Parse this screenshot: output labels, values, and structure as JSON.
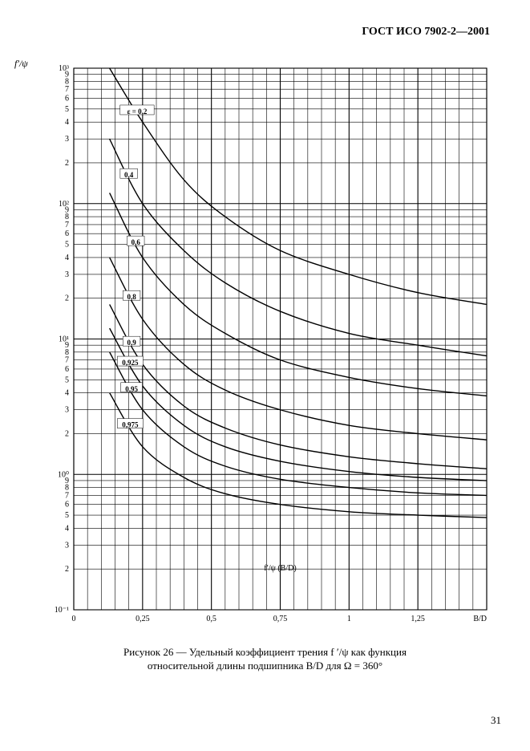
{
  "header": "ГОСТ ИСО 7902-2—2001",
  "page_number": "31",
  "caption_line1": "Рисунок 26 — Удельный коэффициент трения f ′/ψ как функция",
  "caption_line2": "относительной длины подшипника B/D для Ω = 360°",
  "y_axis_symbol": "f′/ψ",
  "x_axis_symbol": "B/D",
  "inner_axis_label": "f′/ψ (B/D)",
  "chart": {
    "type": "line",
    "background_color": "#ffffff",
    "grid_color": "#000000",
    "line_color": "#000000",
    "line_width": 1.4,
    "grid_minor_width": 0.6,
    "grid_major_width": 1.1,
    "font_size_ticks": 10,
    "font_size_series": 9,
    "x": {
      "lim": [
        0,
        1.5
      ],
      "major_step": 0.25,
      "minor_step": 0.05,
      "tick_labels": [
        "0",
        "0,25",
        "0,5",
        "0,75",
        "1",
        "1,25"
      ]
    },
    "y": {
      "type": "log",
      "min_exp": -1,
      "max_exp": 3,
      "decade_labels_sup": [
        "10⁻¹",
        "10⁰",
        "10¹",
        "10²",
        "10³"
      ],
      "minor_ticks_text": [
        "2",
        "3",
        "4",
        "5",
        "6",
        "7",
        "8",
        "9"
      ]
    },
    "series": [
      {
        "label": "ε = 0,2",
        "label_x": 0.23,
        "points": [
          [
            0.13,
            1000
          ],
          [
            0.25,
            400
          ],
          [
            0.4,
            150
          ],
          [
            0.55,
            80
          ],
          [
            0.75,
            45
          ],
          [
            1.0,
            30
          ],
          [
            1.25,
            22
          ],
          [
            1.5,
            18
          ]
        ]
      },
      {
        "label": "0,4",
        "label_x": 0.2,
        "points": [
          [
            0.13,
            300
          ],
          [
            0.25,
            100
          ],
          [
            0.4,
            45
          ],
          [
            0.55,
            26
          ],
          [
            0.75,
            16
          ],
          [
            1.0,
            11
          ],
          [
            1.25,
            9
          ],
          [
            1.5,
            7.5
          ]
        ]
      },
      {
        "label": "0,6",
        "label_x": 0.225,
        "points": [
          [
            0.13,
            120
          ],
          [
            0.25,
            40
          ],
          [
            0.4,
            18
          ],
          [
            0.55,
            11
          ],
          [
            0.75,
            7
          ],
          [
            1.0,
            5.2
          ],
          [
            1.25,
            4.3
          ],
          [
            1.5,
            3.8
          ]
        ]
      },
      {
        "label": "0,8",
        "label_x": 0.21,
        "points": [
          [
            0.13,
            40
          ],
          [
            0.25,
            14
          ],
          [
            0.4,
            6.5
          ],
          [
            0.55,
            4.2
          ],
          [
            0.75,
            3.0
          ],
          [
            1.0,
            2.3
          ],
          [
            1.25,
            2.0
          ],
          [
            1.5,
            1.8
          ]
        ]
      },
      {
        "label": "0,9",
        "label_x": 0.21,
        "points": [
          [
            0.13,
            18
          ],
          [
            0.25,
            6.5
          ],
          [
            0.4,
            3.2
          ],
          [
            0.55,
            2.2
          ],
          [
            0.75,
            1.65
          ],
          [
            1.0,
            1.35
          ],
          [
            1.25,
            1.2
          ],
          [
            1.5,
            1.1
          ]
        ]
      },
      {
        "label": "0,925",
        "label_x": 0.205,
        "points": [
          [
            0.13,
            12
          ],
          [
            0.25,
            4.5
          ],
          [
            0.4,
            2.3
          ],
          [
            0.55,
            1.6
          ],
          [
            0.75,
            1.25
          ],
          [
            1.0,
            1.05
          ],
          [
            1.25,
            0.95
          ],
          [
            1.5,
            0.9
          ]
        ]
      },
      {
        "label": "0,95",
        "label_x": 0.21,
        "points": [
          [
            0.13,
            8
          ],
          [
            0.25,
            3.0
          ],
          [
            0.4,
            1.6
          ],
          [
            0.55,
            1.15
          ],
          [
            0.75,
            0.92
          ],
          [
            1.0,
            0.8
          ],
          [
            1.25,
            0.73
          ],
          [
            1.5,
            0.7
          ]
        ]
      },
      {
        "label": "0,975",
        "label_x": 0.205,
        "points": [
          [
            0.13,
            4
          ],
          [
            0.25,
            1.6
          ],
          [
            0.4,
            0.95
          ],
          [
            0.55,
            0.72
          ],
          [
            0.75,
            0.6
          ],
          [
            1.0,
            0.53
          ],
          [
            1.25,
            0.5
          ],
          [
            1.5,
            0.48
          ]
        ]
      }
    ]
  }
}
